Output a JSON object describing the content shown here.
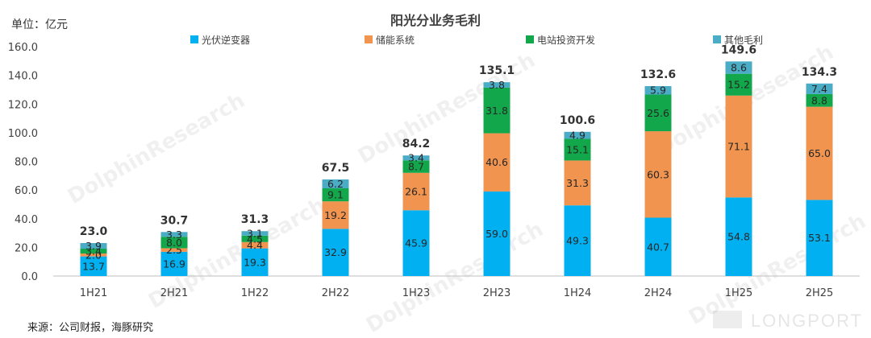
{
  "header": {
    "unit_label": "单位：亿元",
    "title": "阳光分业务毛利"
  },
  "footer": {
    "source": "来源：公司财报，海豚研究"
  },
  "watermark": {
    "text": "DolphinResearch",
    "brand": "LONGPORT"
  },
  "chart_data": {
    "type": "bar",
    "stacked": true,
    "title": "阳光分业务毛利",
    "unit": "单位：亿元",
    "categories": [
      "1H21",
      "2H21",
      "1H22",
      "2H22",
      "1H23",
      "2H23",
      "1H24",
      "2H24",
      "1H25",
      "2H25"
    ],
    "series": [
      {
        "name": "光伏逆变器",
        "color": "#00B0F0",
        "values": [
          13.7,
          16.9,
          19.3,
          32.9,
          45.9,
          59.0,
          49.3,
          40.7,
          54.8,
          53.1
        ]
      },
      {
        "name": "储能系统",
        "color": "#F0944F",
        "values": [
          2.0,
          2.5,
          4.4,
          19.2,
          26.1,
          40.6,
          31.3,
          60.3,
          71.1,
          65.0
        ]
      },
      {
        "name": "电站投资开发",
        "color": "#11A74A",
        "values": [
          3.4,
          8.0,
          4.5,
          9.1,
          8.7,
          31.8,
          15.1,
          25.6,
          15.2,
          8.8
        ]
      },
      {
        "name": "其他毛利",
        "color": "#4BACC6",
        "values": [
          3.9,
          3.3,
          3.1,
          6.2,
          3.4,
          3.8,
          4.9,
          5.9,
          8.6,
          7.4
        ]
      }
    ],
    "totals": [
      23.0,
      30.7,
      31.3,
      67.5,
      84.2,
      135.1,
      100.6,
      132.6,
      149.6,
      134.3
    ],
    "ylim": [
      0,
      160
    ],
    "yticks": [
      "0.0",
      "20.0",
      "40.0",
      "60.0",
      "80.0",
      "100.0",
      "120.0",
      "140.0",
      "160.0"
    ],
    "grid": false,
    "legend_position": "top"
  }
}
